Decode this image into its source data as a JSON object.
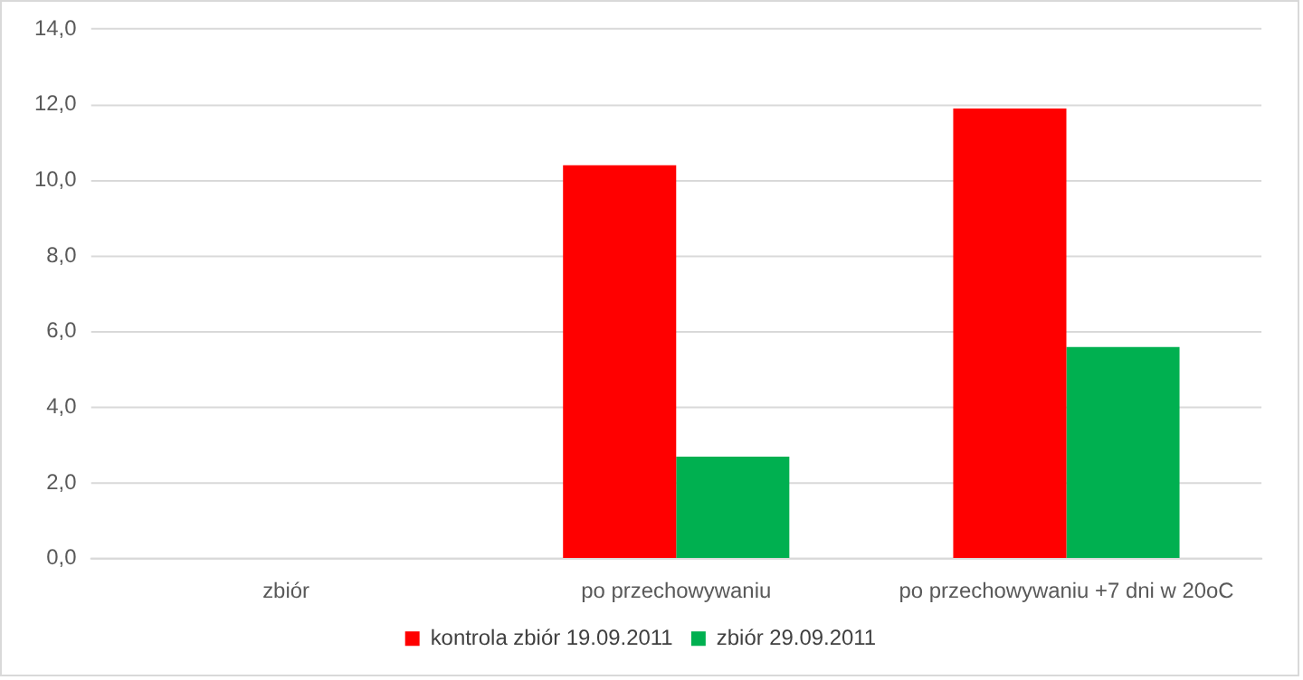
{
  "chart_data": {
    "type": "bar",
    "categories": [
      "zbiór",
      "po przechowywaniu",
      "po przechowywaniu +7 dni w 20oC"
    ],
    "series": [
      {
        "name": "kontrola zbiór 19.09.2011",
        "color": "#ff0000",
        "values": [
          null,
          10.4,
          11.9
        ]
      },
      {
        "name": "zbiór 29.09.2011",
        "color": "#00b050",
        "values": [
          null,
          2.7,
          5.6
        ]
      }
    ],
    "ylim": [
      0,
      14
    ],
    "yticks": [
      {
        "value": 0,
        "label": "0,0"
      },
      {
        "value": 2,
        "label": "2,0"
      },
      {
        "value": 4,
        "label": "4,0"
      },
      {
        "value": 6,
        "label": "6,0"
      },
      {
        "value": 8,
        "label": "8,0"
      },
      {
        "value": 10,
        "label": "10,0"
      },
      {
        "value": 12,
        "label": "12,0"
      },
      {
        "value": 14,
        "label": "14,0"
      }
    ],
    "grid": "y",
    "legend": "bottom"
  }
}
